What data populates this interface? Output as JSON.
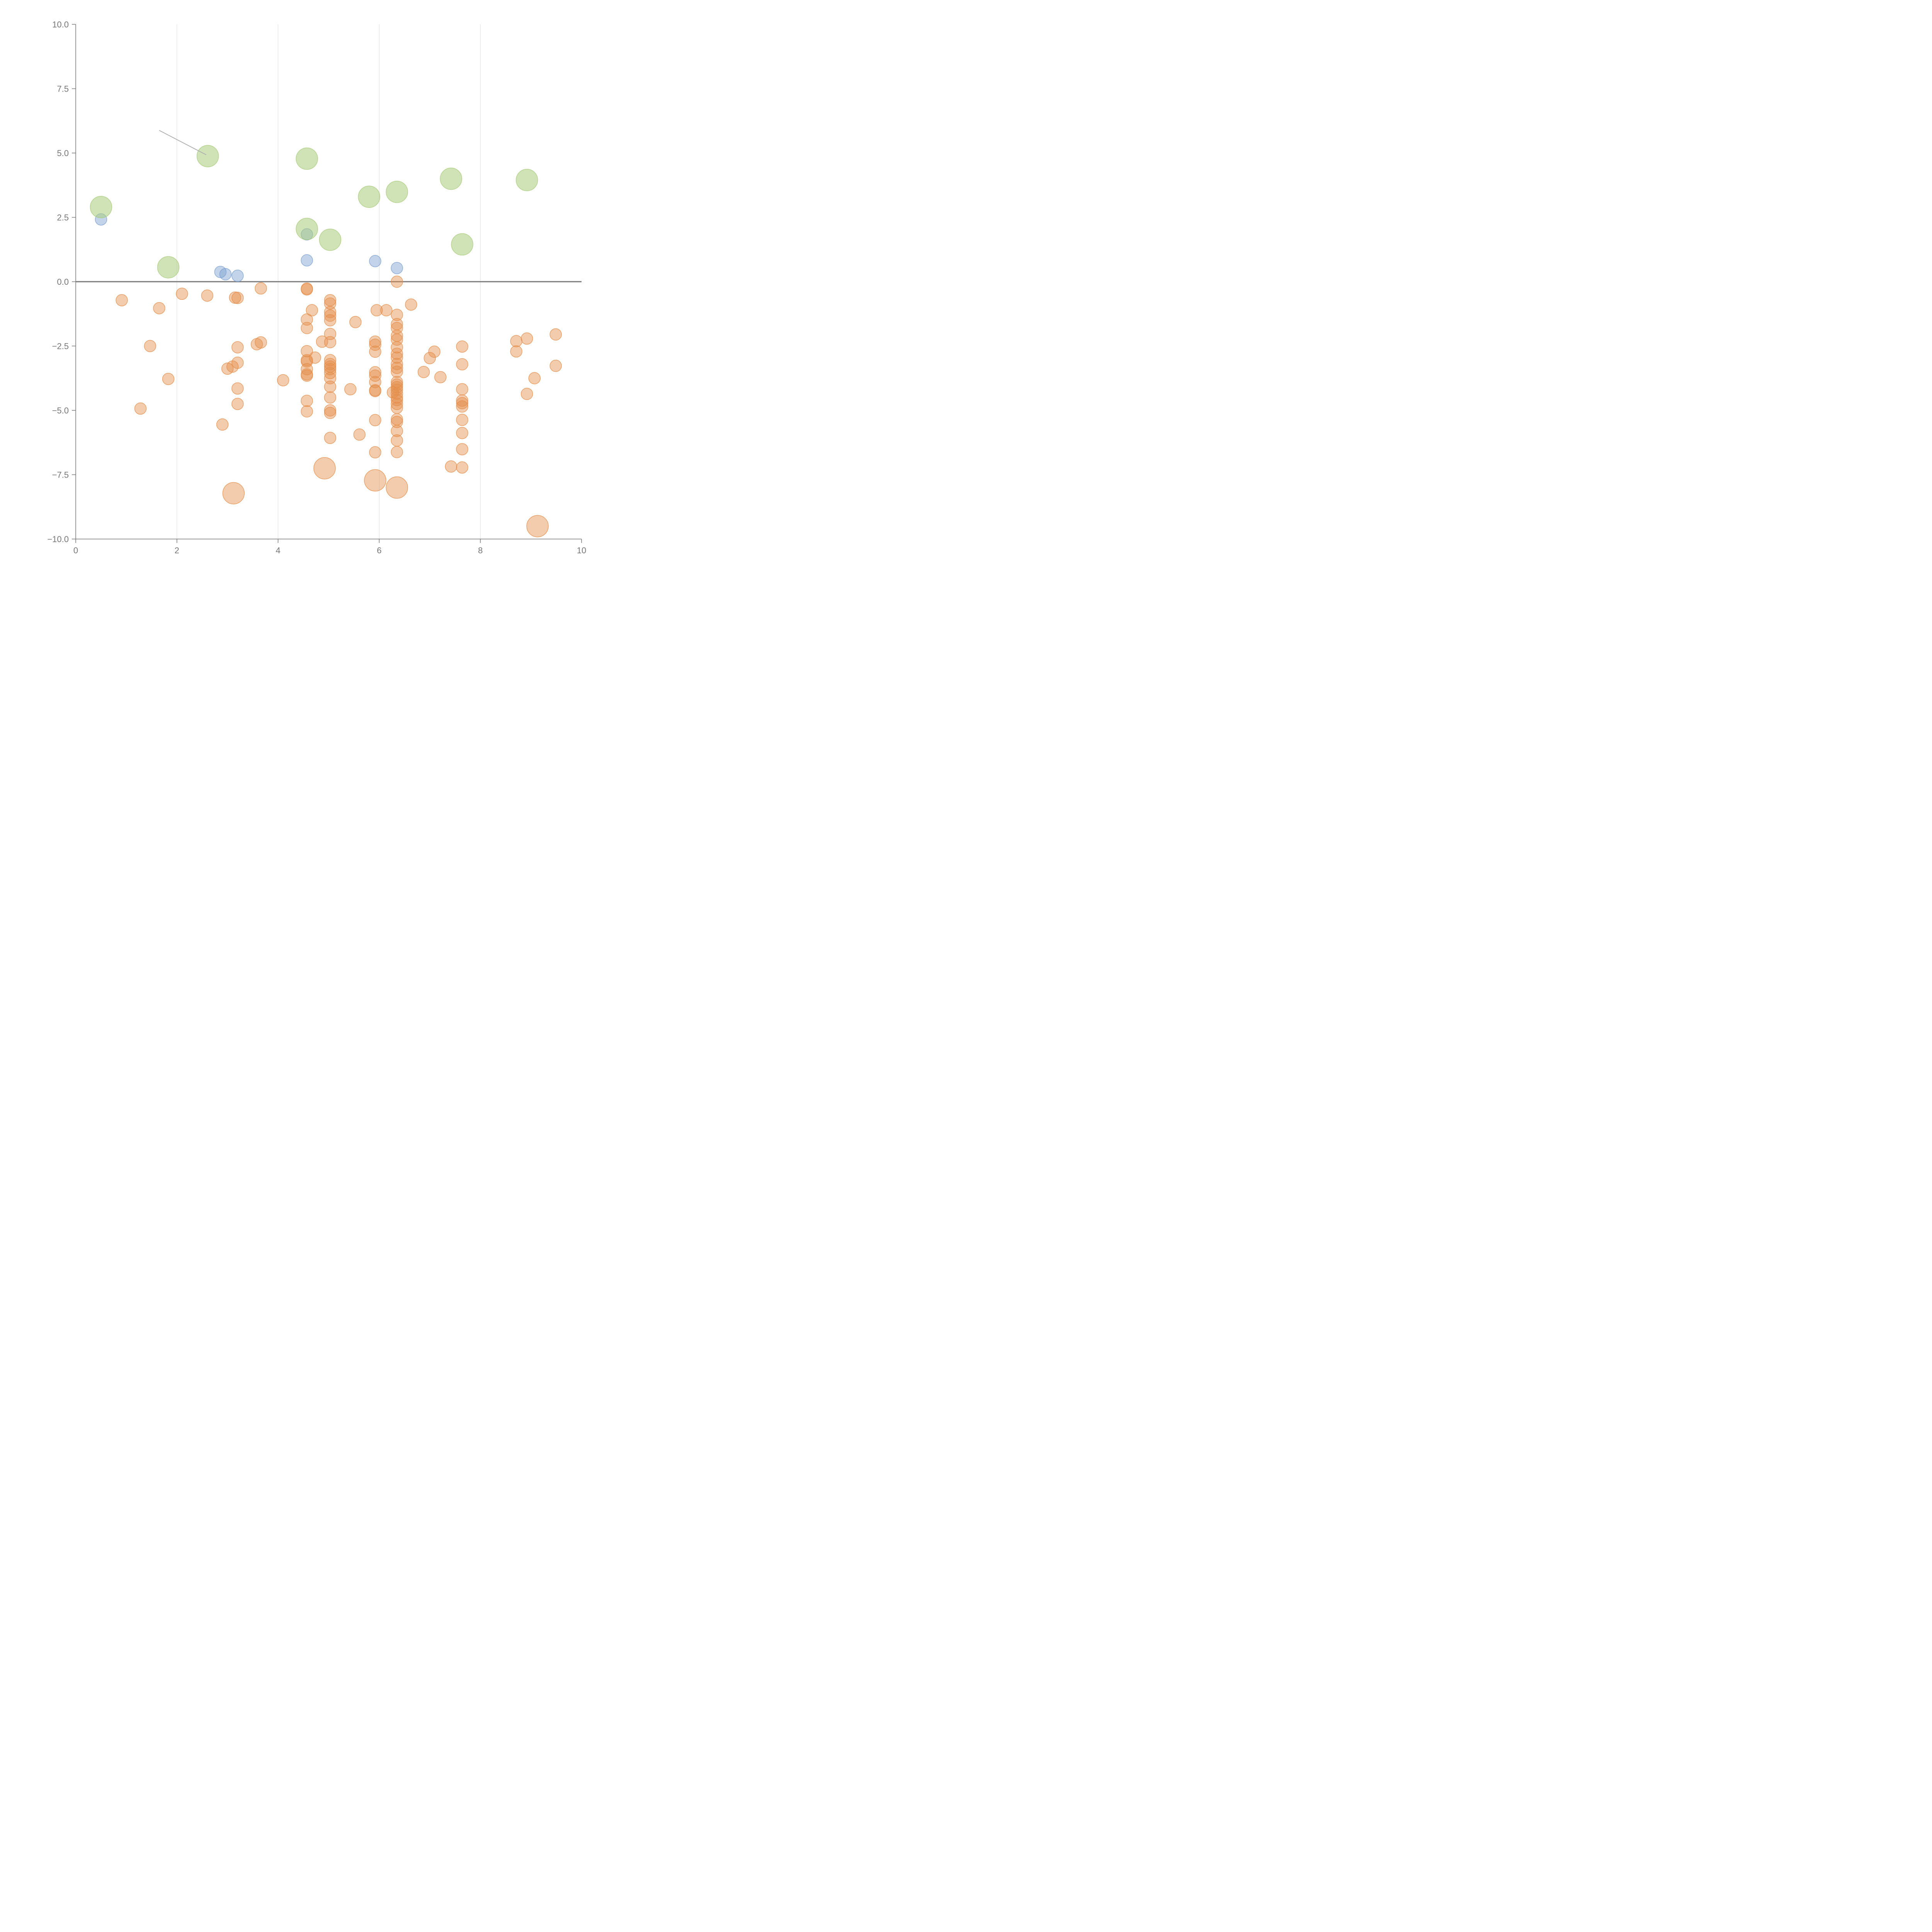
{
  "chart_data": {
    "type": "scatter",
    "title": "",
    "xlabel": "",
    "ylabel": "",
    "xlim": [
      0,
      10
    ],
    "ylim": [
      -10,
      10
    ],
    "grid": {
      "vertical": true,
      "horizontal": false
    },
    "x_ticks": [
      {
        "value": 0,
        "label": "0"
      },
      {
        "value": 2,
        "label": "2"
      },
      {
        "value": 4,
        "label": "4"
      },
      {
        "value": 6,
        "label": "6"
      },
      {
        "value": 8,
        "label": "8"
      },
      {
        "value": 10,
        "label": "10"
      }
    ],
    "y_ticks": [
      {
        "value": 10,
        "label": "10.0"
      },
      {
        "value": 7.5,
        "label": "7.5"
      },
      {
        "value": 5,
        "label": "5.0"
      },
      {
        "value": 2.5,
        "label": "2.5"
      },
      {
        "value": 0,
        "label": "0.0"
      },
      {
        "value": -2.5,
        "label": "−2.5"
      },
      {
        "value": -5,
        "label": "−5.0"
      },
      {
        "value": -7.5,
        "label": "−7.5"
      },
      {
        "value": -10,
        "label": "−10.0"
      }
    ],
    "baseline": 0,
    "series": [
      {
        "color": "#e58e4b",
        "size": "small",
        "points": [
          [
            0.91,
            -0.72
          ],
          [
            1.28,
            -4.93
          ],
          [
            1.47,
            -2.5
          ],
          [
            1.65,
            -1.03
          ],
          [
            1.83,
            -3.78
          ],
          [
            2.1,
            -0.47
          ],
          [
            2.6,
            -0.54
          ],
          [
            2.9,
            -5.55
          ],
          [
            3.0,
            -3.38
          ],
          [
            3.1,
            -3.3
          ],
          [
            3.15,
            -0.62
          ],
          [
            3.2,
            -0.63
          ],
          [
            3.2,
            -2.55
          ],
          [
            3.2,
            -3.15
          ],
          [
            3.2,
            -4.15
          ],
          [
            3.2,
            -4.75
          ],
          [
            3.58,
            -2.43
          ],
          [
            3.66,
            -2.36
          ],
          [
            3.66,
            -0.26
          ],
          [
            4.1,
            -3.83
          ],
          [
            4.57,
            -0.27
          ],
          [
            4.57,
            -0.3
          ],
          [
            4.67,
            -1.11
          ],
          [
            4.57,
            -1.47
          ],
          [
            4.57,
            -1.8
          ],
          [
            4.57,
            -2.7
          ],
          [
            4.57,
            -3.05
          ],
          [
            4.57,
            -3.1
          ],
          [
            4.57,
            -3.4
          ],
          [
            4.57,
            -3.6
          ],
          [
            4.57,
            -3.65
          ],
          [
            4.57,
            -4.63
          ],
          [
            4.57,
            -5.04
          ],
          [
            4.73,
            -2.95
          ],
          [
            4.87,
            -2.33
          ],
          [
            5.03,
            -0.72
          ],
          [
            5.03,
            -0.85
          ],
          [
            5.03,
            -1.18
          ],
          [
            5.03,
            -1.32
          ],
          [
            5.03,
            -1.5
          ],
          [
            5.03,
            -2.03
          ],
          [
            5.03,
            -2.35
          ],
          [
            5.03,
            -3.05
          ],
          [
            5.03,
            -3.2
          ],
          [
            5.03,
            -3.3
          ],
          [
            5.03,
            -3.4
          ],
          [
            5.03,
            -3.55
          ],
          [
            5.03,
            -3.75
          ],
          [
            5.03,
            -4.08
          ],
          [
            5.03,
            -4.5
          ],
          [
            5.03,
            -5.0
          ],
          [
            5.03,
            -5.1
          ],
          [
            5.03,
            -6.07
          ],
          [
            5.43,
            -4.18
          ],
          [
            5.53,
            -1.57
          ],
          [
            5.61,
            -5.94
          ],
          [
            5.92,
            -2.33
          ],
          [
            5.92,
            -2.45
          ],
          [
            5.92,
            -2.72
          ],
          [
            5.92,
            -3.52
          ],
          [
            5.92,
            -3.65
          ],
          [
            5.92,
            -3.9
          ],
          [
            5.92,
            -4.22
          ],
          [
            5.92,
            -4.25
          ],
          [
            5.92,
            -5.38
          ],
          [
            5.92,
            -6.63
          ],
          [
            5.95,
            -1.11
          ],
          [
            6.14,
            -1.11
          ],
          [
            6.27,
            -4.3
          ],
          [
            6.35,
            0.0
          ],
          [
            6.35,
            -1.29
          ],
          [
            6.35,
            -1.65
          ],
          [
            6.35,
            -1.8
          ],
          [
            6.35,
            -2.1
          ],
          [
            6.35,
            -2.25
          ],
          [
            6.35,
            -2.55
          ],
          [
            6.35,
            -2.8
          ],
          [
            6.35,
            -2.95
          ],
          [
            6.35,
            -3.2
          ],
          [
            6.35,
            -3.35
          ],
          [
            6.35,
            -3.5
          ],
          [
            6.35,
            -3.9
          ],
          [
            6.35,
            -4.0
          ],
          [
            6.35,
            -4.1
          ],
          [
            6.35,
            -4.2
          ],
          [
            6.35,
            -4.35
          ],
          [
            6.35,
            -4.5
          ],
          [
            6.35,
            -4.6
          ],
          [
            6.35,
            -4.75
          ],
          [
            6.35,
            -4.9
          ],
          [
            6.35,
            -5.35
          ],
          [
            6.35,
            -5.45
          ],
          [
            6.35,
            -5.8
          ],
          [
            6.35,
            -6.17
          ],
          [
            6.35,
            -6.62
          ],
          [
            6.63,
            -0.89
          ],
          [
            6.88,
            -3.51
          ],
          [
            7.0,
            -2.97
          ],
          [
            7.09,
            -2.72
          ],
          [
            7.21,
            -3.71
          ],
          [
            7.42,
            -7.18
          ],
          [
            7.64,
            -2.52
          ],
          [
            7.64,
            -3.21
          ],
          [
            7.64,
            -4.18
          ],
          [
            7.64,
            -4.62
          ],
          [
            7.64,
            -4.72
          ],
          [
            7.64,
            -4.85
          ],
          [
            7.64,
            -5.37
          ],
          [
            7.64,
            -5.88
          ],
          [
            7.64,
            -6.51
          ],
          [
            7.64,
            -7.22
          ],
          [
            8.71,
            -2.31
          ],
          [
            8.71,
            -2.71
          ],
          [
            8.92,
            -2.21
          ],
          [
            8.92,
            -4.36
          ],
          [
            9.07,
            -3.75
          ],
          [
            9.49,
            -2.05
          ],
          [
            9.49,
            -3.27
          ]
        ]
      },
      {
        "color": "#e58e4b",
        "size": "large",
        "points": [
          [
            3.12,
            -8.22
          ],
          [
            4.92,
            -7.25
          ],
          [
            5.92,
            -7.72
          ],
          [
            6.35,
            -8.0
          ],
          [
            9.13,
            -9.5
          ]
        ]
      },
      {
        "color": "#7b9fd1",
        "size": "small",
        "points": [
          [
            0.5,
            2.42
          ],
          [
            2.86,
            0.38
          ],
          [
            2.96,
            0.29
          ],
          [
            3.2,
            0.23
          ],
          [
            4.57,
            1.84
          ],
          [
            4.57,
            0.83
          ],
          [
            5.92,
            0.8
          ],
          [
            6.35,
            0.53
          ]
        ]
      },
      {
        "color": "#a9cc7c",
        "size": "large",
        "points": [
          [
            0.5,
            2.9
          ],
          [
            1.83,
            0.56
          ],
          [
            2.61,
            4.88
          ],
          [
            4.57,
            4.78
          ],
          [
            4.57,
            2.05
          ],
          [
            5.03,
            1.63
          ],
          [
            5.8,
            3.3
          ],
          [
            6.35,
            3.49
          ],
          [
            7.42,
            4.0
          ],
          [
            7.64,
            1.45
          ],
          [
            8.92,
            3.95
          ]
        ]
      }
    ],
    "annotation_leader": {
      "from": [
        1.65,
        5.88
      ],
      "to": [
        2.58,
        4.93
      ]
    }
  }
}
